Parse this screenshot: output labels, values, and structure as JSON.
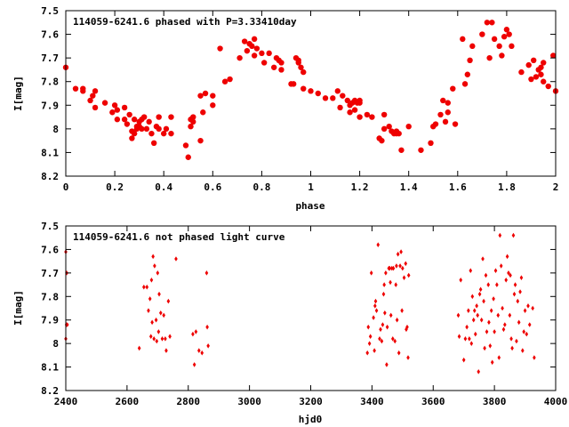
{
  "chart_data": [
    {
      "type": "scatter",
      "title": "114059-6241.6 phased with P=3.33410day",
      "xlabel": "phase",
      "ylabel": "I[mag]",
      "xlim": [
        0,
        2
      ],
      "ylim": [
        8.2,
        7.5
      ],
      "y_inverted": true,
      "x_ticks": [
        0,
        0.2,
        0.4,
        0.6,
        0.8,
        1,
        1.2,
        1.4,
        1.6,
        1.8,
        2
      ],
      "x_tick_labels": [
        "0",
        "0.2",
        "0.4",
        "0.6",
        "0.8",
        "1",
        "1.2",
        "1.4",
        "1.6",
        "1.8",
        "2"
      ],
      "y_ticks": [
        7.5,
        7.6,
        7.7,
        7.8,
        7.9,
        8,
        8.1,
        8.2
      ],
      "y_tick_labels": [
        "7.5",
        "7.6",
        "7.7",
        "7.8",
        "7.9",
        "8",
        "8.1",
        "8.2"
      ],
      "grid": false,
      "marker": "filled-circle",
      "color": "#ee0000",
      "points": [
        [
          0.0,
          7.74
        ],
        [
          0.04,
          7.83
        ],
        [
          0.07,
          7.84
        ],
        [
          0.07,
          7.83
        ],
        [
          0.1,
          7.88
        ],
        [
          0.11,
          7.86
        ],
        [
          0.12,
          7.84
        ],
        [
          0.12,
          7.91
        ],
        [
          0.16,
          7.89
        ],
        [
          0.19,
          7.93
        ],
        [
          0.2,
          7.9
        ],
        [
          0.21,
          7.96
        ],
        [
          0.21,
          7.92
        ],
        [
          0.24,
          7.91
        ],
        [
          0.24,
          7.96
        ],
        [
          0.25,
          7.98
        ],
        [
          0.26,
          7.94
        ],
        [
          0.27,
          8.04
        ],
        [
          0.27,
          8.01
        ],
        [
          0.28,
          7.96
        ],
        [
          0.28,
          8.02
        ],
        [
          0.29,
          8.0
        ],
        [
          0.29,
          7.99
        ],
        [
          0.3,
          7.97
        ],
        [
          0.3,
          7.99
        ],
        [
          0.31,
          8.0
        ],
        [
          0.31,
          7.96
        ],
        [
          0.32,
          7.95
        ],
        [
          0.33,
          8.0
        ],
        [
          0.34,
          7.97
        ],
        [
          0.35,
          8.02
        ],
        [
          0.36,
          8.06
        ],
        [
          0.37,
          7.99
        ],
        [
          0.38,
          7.95
        ],
        [
          0.38,
          8.0
        ],
        [
          0.4,
          8.02
        ],
        [
          0.41,
          8.0
        ],
        [
          0.43,
          8.02
        ],
        [
          0.43,
          7.95
        ],
        [
          0.49,
          8.07
        ],
        [
          0.5,
          8.12
        ],
        [
          0.51,
          7.99
        ],
        [
          0.51,
          7.96
        ],
        [
          0.52,
          7.95
        ],
        [
          0.52,
          7.97
        ],
        [
          0.55,
          8.05
        ],
        [
          0.55,
          7.86
        ],
        [
          0.56,
          7.93
        ],
        [
          0.57,
          7.85
        ],
        [
          0.6,
          7.9
        ],
        [
          0.6,
          7.86
        ],
        [
          0.63,
          7.66
        ],
        [
          0.65,
          7.8
        ],
        [
          0.67,
          7.79
        ],
        [
          0.71,
          7.7
        ],
        [
          0.73,
          7.63
        ],
        [
          0.74,
          7.67
        ],
        [
          0.75,
          7.64
        ],
        [
          0.76,
          7.65
        ],
        [
          0.77,
          7.62
        ],
        [
          0.77,
          7.69
        ],
        [
          0.78,
          7.66
        ],
        [
          0.8,
          7.68
        ],
        [
          0.81,
          7.72
        ],
        [
          0.83,
          7.68
        ],
        [
          0.85,
          7.74
        ],
        [
          0.86,
          7.7
        ],
        [
          0.87,
          7.71
        ],
        [
          0.88,
          7.75
        ],
        [
          0.88,
          7.72
        ],
        [
          0.92,
          7.81
        ],
        [
          0.93,
          7.81
        ],
        [
          0.94,
          7.7
        ],
        [
          0.95,
          7.72
        ],
        [
          0.95,
          7.71
        ],
        [
          0.96,
          7.74
        ],
        [
          0.97,
          7.76
        ],
        [
          0.97,
          7.83
        ],
        [
          1.0,
          7.84
        ],
        [
          1.03,
          7.85
        ],
        [
          1.06,
          7.87
        ],
        [
          1.09,
          7.87
        ],
        [
          1.11,
          7.84
        ],
        [
          1.12,
          7.91
        ],
        [
          1.13,
          7.86
        ],
        [
          1.15,
          7.88
        ],
        [
          1.16,
          7.9
        ],
        [
          1.16,
          7.93
        ],
        [
          1.17,
          7.89
        ],
        [
          1.18,
          7.88
        ],
        [
          1.18,
          7.92
        ],
        [
          1.19,
          7.89
        ],
        [
          1.2,
          7.88
        ],
        [
          1.2,
          7.95
        ],
        [
          1.2,
          7.89
        ],
        [
          1.23,
          7.94
        ],
        [
          1.25,
          7.95
        ],
        [
          1.28,
          8.04
        ],
        [
          1.29,
          8.05
        ],
        [
          1.3,
          8.0
        ],
        [
          1.3,
          7.94
        ],
        [
          1.32,
          7.99
        ],
        [
          1.33,
          8.01
        ],
        [
          1.34,
          8.02
        ],
        [
          1.35,
          8.02
        ],
        [
          1.35,
          8.01
        ],
        [
          1.36,
          8.02
        ],
        [
          1.37,
          8.09
        ],
        [
          1.4,
          7.99
        ],
        [
          1.45,
          8.09
        ],
        [
          1.49,
          8.06
        ],
        [
          1.5,
          7.99
        ],
        [
          1.51,
          7.98
        ],
        [
          1.53,
          7.94
        ],
        [
          1.54,
          7.88
        ],
        [
          1.55,
          7.97
        ],
        [
          1.56,
          7.93
        ],
        [
          1.56,
          7.89
        ],
        [
          1.58,
          7.83
        ],
        [
          1.59,
          7.98
        ],
        [
          1.62,
          7.62
        ],
        [
          1.63,
          7.81
        ],
        [
          1.64,
          7.77
        ],
        [
          1.65,
          7.71
        ],
        [
          1.66,
          7.65
        ],
        [
          1.7,
          7.6
        ],
        [
          1.72,
          7.55
        ],
        [
          1.73,
          7.7
        ],
        [
          1.74,
          7.55
        ],
        [
          1.75,
          7.62
        ],
        [
          1.77,
          7.65
        ],
        [
          1.78,
          7.69
        ],
        [
          1.79,
          7.61
        ],
        [
          1.8,
          7.58
        ],
        [
          1.81,
          7.6
        ],
        [
          1.82,
          7.65
        ],
        [
          1.86,
          7.76
        ],
        [
          1.89,
          7.73
        ],
        [
          1.9,
          7.79
        ],
        [
          1.91,
          7.71
        ],
        [
          1.92,
          7.78
        ],
        [
          1.93,
          7.75
        ],
        [
          1.94,
          7.74
        ],
        [
          1.94,
          7.77
        ],
        [
          1.95,
          7.72
        ],
        [
          1.95,
          7.8
        ],
        [
          1.97,
          7.82
        ],
        [
          1.99,
          7.69
        ],
        [
          2.0,
          7.84
        ]
      ]
    },
    {
      "type": "scatter",
      "title": "114059-6241.6 not phased light curve",
      "xlabel": "hjd0",
      "ylabel": "I[mag]",
      "xlim": [
        2400,
        4000
      ],
      "ylim": [
        8.2,
        7.5
      ],
      "y_inverted": true,
      "x_ticks": [
        2400,
        2600,
        2800,
        3000,
        3200,
        3400,
        3600,
        3800,
        4000
      ],
      "x_tick_labels": [
        "2400",
        "2600",
        "2800",
        "3000",
        "3200",
        "3400",
        "3600",
        "3800",
        "4000"
      ],
      "y_ticks": [
        7.5,
        7.6,
        7.7,
        7.8,
        7.9,
        8,
        8.1,
        8.2
      ],
      "y_tick_labels": [
        "7.5",
        "7.6",
        "7.7",
        "7.8",
        "7.9",
        "8",
        "8.1",
        "8.2"
      ],
      "grid": false,
      "marker": "small-diamond",
      "color": "#ee0000",
      "points": [
        [
          2400,
          7.61
        ],
        [
          2400,
          7.98
        ],
        [
          2402,
          7.92
        ],
        [
          2403,
          7.7
        ],
        [
          2405,
          7.92
        ],
        [
          2640,
          8.02
        ],
        [
          2655,
          7.76
        ],
        [
          2665,
          7.76
        ],
        [
          2670,
          7.86
        ],
        [
          2675,
          7.81
        ],
        [
          2678,
          7.97
        ],
        [
          2680,
          7.73
        ],
        [
          2682,
          7.91
        ],
        [
          2685,
          7.63
        ],
        [
          2688,
          7.98
        ],
        [
          2690,
          7.67
        ],
        [
          2695,
          7.9
        ],
        [
          2697,
          7.99
        ],
        [
          2700,
          7.7
        ],
        [
          2703,
          7.95
        ],
        [
          2705,
          7.79
        ],
        [
          2710,
          7.87
        ],
        [
          2715,
          7.98
        ],
        [
          2720,
          7.88
        ],
        [
          2725,
          7.98
        ],
        [
          2728,
          8.03
        ],
        [
          2735,
          7.82
        ],
        [
          2740,
          7.97
        ],
        [
          2760,
          7.64
        ],
        [
          2815,
          7.96
        ],
        [
          2820,
          8.09
        ],
        [
          2825,
          7.95
        ],
        [
          2835,
          8.03
        ],
        [
          2845,
          8.04
        ],
        [
          2860,
          7.7
        ],
        [
          2862,
          7.93
        ],
        [
          2865,
          8.01
        ],
        [
          3385,
          8.04
        ],
        [
          3388,
          7.93
        ],
        [
          3392,
          8.0
        ],
        [
          3395,
          7.97
        ],
        [
          3398,
          7.7
        ],
        [
          3405,
          7.89
        ],
        [
          3408,
          8.03
        ],
        [
          3410,
          7.84
        ],
        [
          3412,
          7.82
        ],
        [
          3415,
          7.86
        ],
        [
          3420,
          7.58
        ],
        [
          3425,
          7.98
        ],
        [
          3428,
          7.94
        ],
        [
          3432,
          7.99
        ],
        [
          3435,
          7.92
        ],
        [
          3438,
          7.79
        ],
        [
          3440,
          7.75
        ],
        [
          3442,
          7.87
        ],
        [
          3445,
          7.7
        ],
        [
          3448,
          8.09
        ],
        [
          3450,
          7.93
        ],
        [
          3455,
          7.68
        ],
        [
          3458,
          7.68
        ],
        [
          3460,
          7.74
        ],
        [
          3462,
          7.88
        ],
        [
          3465,
          7.68
        ],
        [
          3468,
          7.98
        ],
        [
          3470,
          7.68
        ],
        [
          3475,
          7.99
        ],
        [
          3478,
          7.75
        ],
        [
          3480,
          7.67
        ],
        [
          3482,
          7.9
        ],
        [
          3485,
          7.62
        ],
        [
          3488,
          8.04
        ],
        [
          3492,
          7.67
        ],
        [
          3495,
          7.61
        ],
        [
          3498,
          7.86
        ],
        [
          3500,
          7.68
        ],
        [
          3505,
          7.72
        ],
        [
          3510,
          7.66
        ],
        [
          3512,
          7.94
        ],
        [
          3515,
          7.93
        ],
        [
          3518,
          8.06
        ],
        [
          3520,
          7.71
        ],
        [
          3682,
          7.88
        ],
        [
          3685,
          7.97
        ],
        [
          3690,
          7.73
        ],
        [
          3700,
          8.07
        ],
        [
          3705,
          7.98
        ],
        [
          3710,
          7.93
        ],
        [
          3715,
          7.86
        ],
        [
          3718,
          7.98
        ],
        [
          3722,
          7.69
        ],
        [
          3725,
          8.0
        ],
        [
          3728,
          7.8
        ],
        [
          3732,
          7.9
        ],
        [
          3735,
          7.86
        ],
        [
          3738,
          7.96
        ],
        [
          3742,
          7.84
        ],
        [
          3745,
          7.88
        ],
        [
          3748,
          8.12
        ],
        [
          3752,
          7.79
        ],
        [
          3755,
          7.77
        ],
        [
          3758,
          7.9
        ],
        [
          3762,
          7.64
        ],
        [
          3765,
          7.82
        ],
        [
          3768,
          8.02
        ],
        [
          3772,
          7.71
        ],
        [
          3775,
          7.95
        ],
        [
          3780,
          7.75
        ],
        [
          3782,
          7.91
        ],
        [
          3786,
          8.01
        ],
        [
          3790,
          7.86
        ],
        [
          3793,
          8.08
        ],
        [
          3797,
          7.81
        ],
        [
          3800,
          7.95
        ],
        [
          3804,
          7.69
        ],
        [
          3808,
          7.75
        ],
        [
          3812,
          7.88
        ],
        [
          3815,
          8.06
        ],
        [
          3818,
          7.54
        ],
        [
          3822,
          7.67
        ],
        [
          3826,
          7.85
        ],
        [
          3830,
          7.94
        ],
        [
          3834,
          7.92
        ],
        [
          3838,
          7.73
        ],
        [
          3842,
          7.63
        ],
        [
          3846,
          7.7
        ],
        [
          3850,
          7.88
        ],
        [
          3852,
          7.71
        ],
        [
          3855,
          7.98
        ],
        [
          3858,
          8.02
        ],
        [
          3862,
          7.54
        ],
        [
          3865,
          7.79
        ],
        [
          3868,
          7.75
        ],
        [
          3872,
          7.99
        ],
        [
          3876,
          7.82
        ],
        [
          3880,
          7.91
        ],
        [
          3884,
          7.78
        ],
        [
          3888,
          7.72
        ],
        [
          3892,
          8.03
        ],
        [
          3896,
          7.95
        ],
        [
          3900,
          7.86
        ],
        [
          3905,
          7.96
        ],
        [
          3910,
          7.84
        ],
        [
          3915,
          7.92
        ],
        [
          3925,
          7.85
        ],
        [
          3930,
          8.06
        ]
      ]
    }
  ]
}
